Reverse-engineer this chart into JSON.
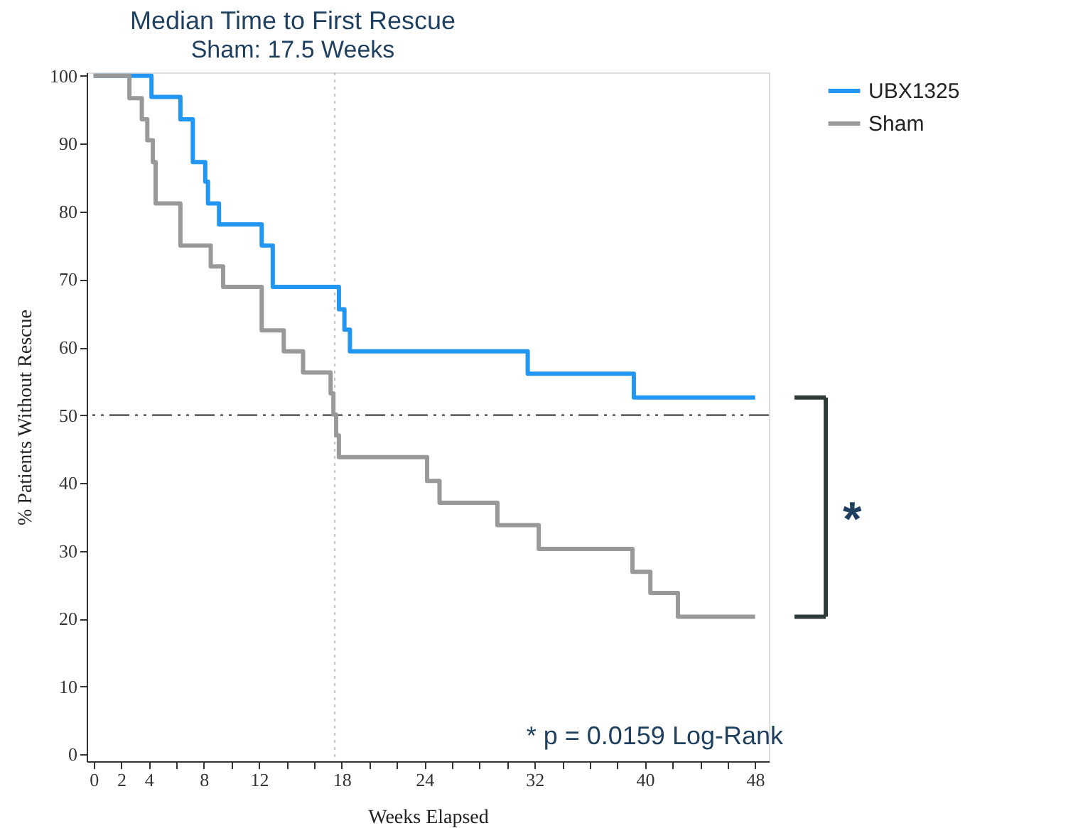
{
  "chart_data": {
    "type": "step",
    "title": "Median Time to First Rescue",
    "subtitle": "Sham: 17.5 Weeks",
    "xlabel": "Weeks Elapsed",
    "ylabel": "% Patients Without Rescue",
    "series": [
      {
        "name": "UBX1325",
        "color": "#2196f3",
        "x": [
          0,
          4.2,
          6.3,
          7.2,
          8.1,
          8.3,
          9.1,
          12.2,
          13.0,
          17.8,
          18.2,
          18.6,
          31.5,
          39.2,
          48
        ],
        "values": [
          100,
          96.9,
          93.6,
          87.3,
          84.4,
          81.2,
          78.1,
          75.0,
          68.9,
          65.6,
          62.6,
          59.4,
          56.1,
          52.6,
          52.6
        ]
      },
      {
        "name": "Sham",
        "color": "#999999",
        "x": [
          0,
          2.6,
          3.5,
          3.9,
          4.3,
          4.5,
          6.3,
          8.5,
          9.4,
          12.2,
          13.8,
          15.2,
          17.2,
          17.4,
          17.6,
          17.8,
          24.2,
          25.1,
          29.3,
          32.3,
          39.1,
          40.4,
          42.4,
          48
        ],
        "values": [
          100,
          96.7,
          93.6,
          90.5,
          87.3,
          81.2,
          75.0,
          71.9,
          68.9,
          62.5,
          59.4,
          56.3,
          53.2,
          50.1,
          47.0,
          43.8,
          40.3,
          37.1,
          33.8,
          30.3,
          26.9,
          23.8,
          20.3,
          20.3
        ]
      }
    ],
    "xlim": [
      -0.5,
      49
    ],
    "xticks": [
      0,
      2,
      4,
      {
        "value": 6,
        "label": null
      },
      8,
      {
        "value": 10,
        "label": null
      },
      12,
      {
        "value": 14,
        "label": null
      },
      {
        "value": 16,
        "label": null
      },
      18,
      {
        "value": 20,
        "label": null
      },
      {
        "value": 22,
        "label": null
      },
      24,
      {
        "value": 26,
        "label": null
      },
      {
        "value": 28,
        "label": null
      },
      {
        "value": 30,
        "label": null
      },
      32,
      {
        "value": 34,
        "label": null
      },
      {
        "value": 36,
        "label": null
      },
      {
        "value": 38,
        "label": null
      },
      40,
      {
        "value": 42,
        "label": null
      },
      {
        "value": 44,
        "label": null
      },
      {
        "value": 46,
        "label": null
      },
      48
    ],
    "ylim": [
      -1,
      100.5
    ],
    "yticks": [
      0,
      10,
      20,
      30,
      40,
      50,
      60,
      70,
      80,
      90,
      100
    ],
    "ref_lines": [
      {
        "axis": "y",
        "value": 50,
        "color": "#666666",
        "line_style": "dashed"
      },
      {
        "axis": "x",
        "value": 17.5,
        "color": "#bbbbbb",
        "line_style": "dotted"
      }
    ],
    "annotations": [
      "* p = 0.0159 Log-Rank",
      "*"
    ],
    "legend": "right",
    "grid": false
  }
}
